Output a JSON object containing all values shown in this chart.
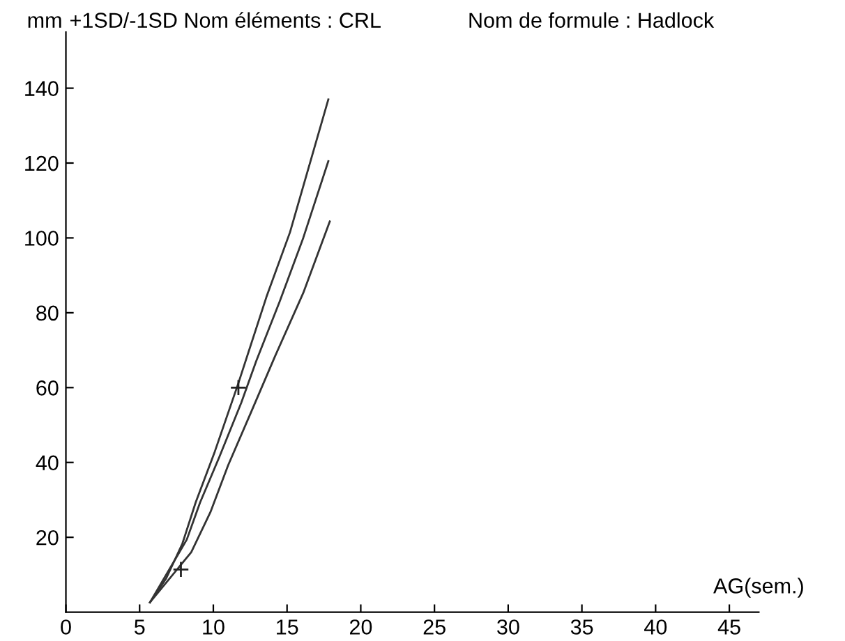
{
  "chart_data": {
    "type": "line",
    "title": "+1SD/-1SD Nom éléments : CRL",
    "subtitle": "Nom de formule : Hadlock",
    "xlabel": "AG(sem.)",
    "ylabel": "mm",
    "xlim": [
      0,
      47
    ],
    "ylim": [
      0,
      155
    ],
    "xticks": [
      0,
      5,
      10,
      15,
      20,
      25,
      30,
      35,
      40,
      45
    ],
    "yticks": [
      20,
      40,
      60,
      80,
      100,
      120,
      140
    ],
    "grid": false,
    "legend": false,
    "marker": "none",
    "line_style": "solid",
    "series": [
      {
        "color": "#333333",
        "x": [
          5.7,
          6.8,
          7.9,
          8.8,
          10.1,
          11.7,
          13.6,
          15.2,
          16.7,
          17.8
        ],
        "values": [
          2.6,
          9,
          18.3,
          29.3,
          42.9,
          61.2,
          84.2,
          101.5,
          122,
          137
        ]
      },
      {
        "color": "#333333",
        "x": [
          5.7,
          8.2,
          9.1,
          10.4,
          11.9,
          12.9,
          14.5,
          16.1,
          17.8
        ],
        "values": [
          2.6,
          19.4,
          29.3,
          41.4,
          56,
          67,
          83,
          100,
          120.5
        ]
      },
      {
        "color": "#333333",
        "x": [
          5.7,
          8.5,
          9.8,
          11.0,
          12.6,
          14.2,
          16.1,
          17.9
        ],
        "values": [
          2.6,
          16,
          26.7,
          39.2,
          53.8,
          68.5,
          85.3,
          104.4
        ]
      },
      {
        "type": "scatter",
        "marker": "cross",
        "color": "#222222",
        "x": [
          7.8,
          11.7
        ],
        "values": [
          11.4,
          60
        ]
      }
    ]
  }
}
